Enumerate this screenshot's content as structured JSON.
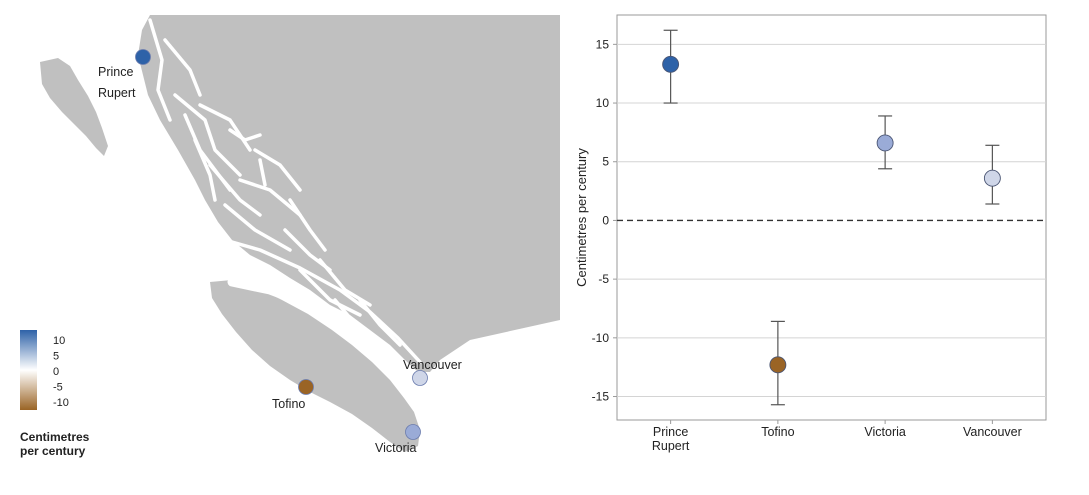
{
  "map": {
    "land_color": "#c0c0c0",
    "water_color": "#ffffff",
    "cities": [
      {
        "name": "Prince Rupert",
        "label_lines": [
          "Prince",
          "Rupert"
        ],
        "trend": 13.3,
        "color": "#2e62a8"
      },
      {
        "name": "Tofino",
        "label_lines": [
          "Tofino"
        ],
        "trend": -12.3,
        "color": "#9a6425"
      },
      {
        "name": "Vancouver",
        "label_lines": [
          "Vancouver"
        ],
        "trend": 3.6,
        "color": "#cfd6e8"
      },
      {
        "name": "Victoria",
        "label_lines": [
          "Victoria"
        ],
        "trend": 6.6,
        "color": "#9aabd7"
      }
    ],
    "legend": {
      "ticks": [
        "10",
        "5",
        "0",
        "-5",
        "-10"
      ],
      "title_line1": "Centimetres",
      "title_line2": "per century",
      "colors": [
        "#2e62a8",
        "#ffffff",
        "#9a6425"
      ]
    }
  },
  "chart_data": {
    "type": "scatter",
    "categories": [
      "Prince Rupert",
      "Tofino",
      "Victoria",
      "Vancouver"
    ],
    "category_label_lines": [
      [
        "Prince",
        "Rupert"
      ],
      [
        "Tofino"
      ],
      [
        "Victoria"
      ],
      [
        "Vancouver"
      ]
    ],
    "values": [
      13.3,
      -12.3,
      6.6,
      3.6
    ],
    "error_low": [
      10.0,
      -15.7,
      4.4,
      1.4
    ],
    "error_high": [
      16.2,
      -8.6,
      8.9,
      6.4
    ],
    "colors": [
      "#2e62a8",
      "#9a6425",
      "#9aabd7",
      "#cfd6e8"
    ],
    "ylabel": "Centimetres per century",
    "xlabel": "",
    "title": "",
    "ylim": [
      -17,
      17.5
    ],
    "yticks": [
      -15,
      -10,
      -5,
      0,
      5,
      10,
      15
    ],
    "grid": true,
    "zero_line": "dashed"
  }
}
